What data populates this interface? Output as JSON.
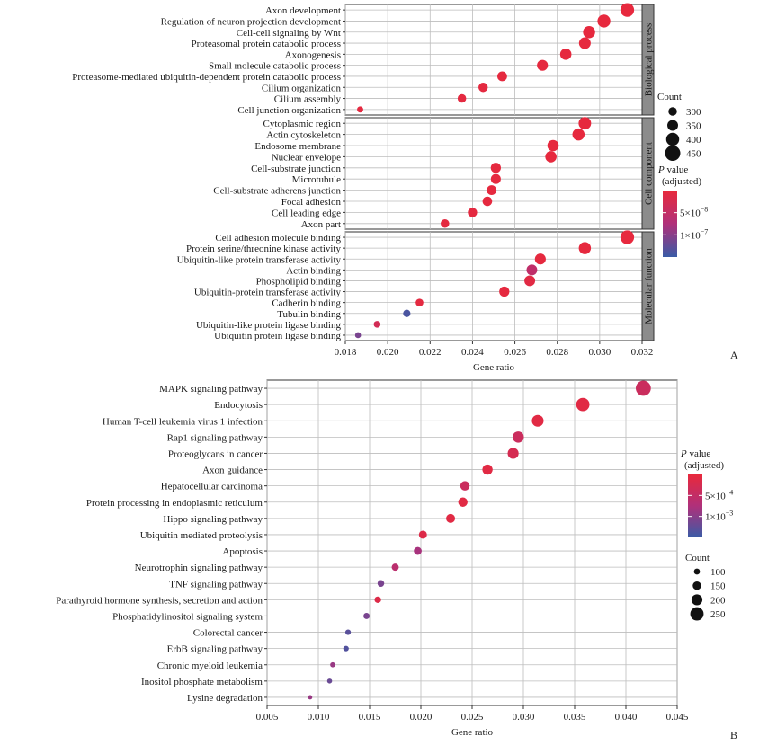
{
  "chart_data": [
    {
      "type": "scatter",
      "subtype": "dot-plot",
      "panel_label": "A",
      "xlabel": "Gene ratio",
      "xlim": [
        0.018,
        0.032
      ],
      "xticks": [
        0.018,
        0.02,
        0.022,
        0.024,
        0.026,
        0.028,
        0.03,
        0.032
      ],
      "xtick_labels": [
        "0.018",
        "0.020",
        "0.022",
        "0.024",
        "0.026",
        "0.028",
        "0.030",
        "0.032"
      ],
      "facets": [
        {
          "name": "Biological process",
          "terms": [
            {
              "label": "Axon development",
              "ratio": 0.0313,
              "count": 460,
              "p": 2e-09
            },
            {
              "label": "Regulation of neuron projection development",
              "ratio": 0.0302,
              "count": 440,
              "p": 2e-09
            },
            {
              "label": "Cell-cell signaling by Wnt",
              "ratio": 0.0295,
              "count": 420,
              "p": 3e-09
            },
            {
              "label": "Proteasomal protein catabolic process",
              "ratio": 0.0293,
              "count": 410,
              "p": 3e-09
            },
            {
              "label": "Axonogenesis",
              "ratio": 0.0284,
              "count": 400,
              "p": 3e-09
            },
            {
              "label": "Small molecule catabolic process",
              "ratio": 0.0273,
              "count": 390,
              "p": 4e-09
            },
            {
              "label": "Proteasome-mediated ubiquitin-dependent protein catabolic process",
              "ratio": 0.0254,
              "count": 360,
              "p": 4e-09
            },
            {
              "label": "Cilium organization",
              "ratio": 0.0245,
              "count": 350,
              "p": 5e-09
            },
            {
              "label": "Cilium assembly",
              "ratio": 0.0235,
              "count": 330,
              "p": 5e-09
            },
            {
              "label": "Cell junction organization",
              "ratio": 0.0187,
              "count": 270,
              "p": 6e-09
            }
          ]
        },
        {
          "name": "Cell component",
          "terms": [
            {
              "label": "Cytoplasmic region",
              "ratio": 0.0293,
              "count": 430,
              "p": 3e-09
            },
            {
              "label": "Actin cytoskeleton",
              "ratio": 0.029,
              "count": 420,
              "p": 3e-09
            },
            {
              "label": "Endosome membrane",
              "ratio": 0.0278,
              "count": 400,
              "p": 3e-09
            },
            {
              "label": "Nuclear envelope",
              "ratio": 0.0277,
              "count": 400,
              "p": 3e-09
            },
            {
              "label": "Cell-substrate junction",
              "ratio": 0.0251,
              "count": 370,
              "p": 4e-09
            },
            {
              "label": "Microtubule",
              "ratio": 0.0251,
              "count": 365,
              "p": 4e-09
            },
            {
              "label": "Cell-substrate adherens junction",
              "ratio": 0.0249,
              "count": 360,
              "p": 4e-09
            },
            {
              "label": "Focal adhesion",
              "ratio": 0.0247,
              "count": 355,
              "p": 4e-09
            },
            {
              "label": "Cell leading edge",
              "ratio": 0.024,
              "count": 350,
              "p": 5e-09
            },
            {
              "label": "Axon part",
              "ratio": 0.0227,
              "count": 330,
              "p": 5e-09
            }
          ]
        },
        {
          "name": "Molecular function",
          "terms": [
            {
              "label": "Cell adhesion molecule binding",
              "ratio": 0.0313,
              "count": 460,
              "p": 2e-09
            },
            {
              "label": "Protein serine/threonine kinase activity",
              "ratio": 0.0293,
              "count": 420,
              "p": 3e-09
            },
            {
              "label": "Ubiquitin-like protein transferase activity",
              "ratio": 0.0272,
              "count": 390,
              "p": 4e-09
            },
            {
              "label": "Actin binding",
              "ratio": 0.0268,
              "count": 385,
              "p": 5.5e-08
            },
            {
              "label": "Phospholipid binding",
              "ratio": 0.0267,
              "count": 385,
              "p": 1e-08
            },
            {
              "label": "Ubiquitin-protein transferase activity",
              "ratio": 0.0255,
              "count": 370,
              "p": 4e-09
            },
            {
              "label": "Cadherin binding",
              "ratio": 0.0215,
              "count": 310,
              "p": 6e-09
            },
            {
              "label": "Tubulin binding",
              "ratio": 0.0209,
              "count": 300,
              "p": 1.4e-07
            },
            {
              "label": "Ubiquitin-like protein ligase binding",
              "ratio": 0.0195,
              "count": 285,
              "p": 3e-08
            },
            {
              "label": "Ubiquitin protein ligase binding",
              "ratio": 0.0186,
              "count": 265,
              "p": 1.1e-07
            }
          ]
        }
      ],
      "legend_count": {
        "title": "Count",
        "values": [
          300,
          350,
          400,
          450
        ],
        "labels": [
          "300",
          "350",
          "400",
          "450"
        ]
      },
      "legend_color": {
        "title_p": "P",
        "title_rest": " value",
        "title_line2": "(adjusted)",
        "ticks": [
          {
            "mantissa": "5",
            "exponent": "−8",
            "value": 5e-08
          },
          {
            "mantissa": "1",
            "exponent": "−7",
            "value": 1e-07
          }
        ],
        "p_range": [
          0,
          1.5e-07
        ],
        "colors": {
          "low": "#e8293c",
          "mid": "#b0307a",
          "high": "#3a5ba6"
        }
      }
    },
    {
      "type": "scatter",
      "subtype": "dot-plot",
      "panel_label": "B",
      "xlabel": "Gene ratio",
      "xlim": [
        0.005,
        0.045
      ],
      "xticks": [
        0.005,
        0.01,
        0.015,
        0.02,
        0.025,
        0.03,
        0.035,
        0.04,
        0.045
      ],
      "xtick_labels": [
        "0.005",
        "0.010",
        "0.015",
        "0.020",
        "0.025",
        "0.030",
        "0.035",
        "0.040",
        "0.045"
      ],
      "terms": [
        {
          "label": "MAPK signaling pathway",
          "ratio": 0.0417,
          "count": 270,
          "p": 0.0004
        },
        {
          "label": "Endocytosis",
          "ratio": 0.0358,
          "count": 235,
          "p": 0.0001
        },
        {
          "label": "Human T-cell leukemia virus 1 infection",
          "ratio": 0.0314,
          "count": 205,
          "p": 0.0001
        },
        {
          "label": "Rap1 signaling pathway",
          "ratio": 0.0295,
          "count": 195,
          "p": 0.0004
        },
        {
          "label": "Proteoglycans in cancer",
          "ratio": 0.029,
          "count": 190,
          "p": 0.00025
        },
        {
          "label": "Axon guidance",
          "ratio": 0.0265,
          "count": 175,
          "p": 0.0001
        },
        {
          "label": "Hepatocellular carcinoma",
          "ratio": 0.0243,
          "count": 160,
          "p": 0.0004
        },
        {
          "label": "Protein processing in endoplasmic reticulum",
          "ratio": 0.0241,
          "count": 158,
          "p": 0.0001
        },
        {
          "label": "Hippo signaling pathway",
          "ratio": 0.0229,
          "count": 150,
          "p": 0.0001
        },
        {
          "label": "Ubiquitin mediated proteolysis",
          "ratio": 0.0202,
          "count": 133,
          "p": 0.00015
        },
        {
          "label": "Apoptosis",
          "ratio": 0.0197,
          "count": 130,
          "p": 0.0008
        },
        {
          "label": "Neurotrophin signaling pathway",
          "ratio": 0.0175,
          "count": 115,
          "p": 0.0006
        },
        {
          "label": "TNF signaling pathway",
          "ratio": 0.0161,
          "count": 106,
          "p": 0.0011
        },
        {
          "label": "Parathyroid hormone synthesis, secretion and action",
          "ratio": 0.0158,
          "count": 104,
          "p": 0.00015
        },
        {
          "label": "Phosphatidylinositol signaling system",
          "ratio": 0.0147,
          "count": 97,
          "p": 0.0011
        },
        {
          "label": "Colorectal cancer",
          "ratio": 0.0129,
          "count": 85,
          "p": 0.0013
        },
        {
          "label": "ErbB signaling pathway",
          "ratio": 0.0127,
          "count": 84,
          "p": 0.00135
        },
        {
          "label": "Chronic myeloid leukemia",
          "ratio": 0.0114,
          "count": 75,
          "p": 0.0009
        },
        {
          "label": "Inositol phosphate metabolism",
          "ratio": 0.0111,
          "count": 73,
          "p": 0.0012
        },
        {
          "label": "Lysine degradation",
          "ratio": 0.0092,
          "count": 60,
          "p": 0.0009
        }
      ],
      "legend_count": {
        "title": "Count",
        "values": [
          100,
          150,
          200,
          250
        ],
        "labels": [
          "100",
          "150",
          "200",
          "250"
        ]
      },
      "legend_color": {
        "title_p": "P",
        "title_rest": " value",
        "title_line2": "(adjusted)",
        "ticks": [
          {
            "mantissa": "5",
            "exponent": "−4",
            "value": 0.0005
          },
          {
            "mantissa": "1",
            "exponent": "−3",
            "value": 0.001
          }
        ],
        "p_range": [
          0,
          0.0015
        ],
        "colors": {
          "low": "#e8293c",
          "mid": "#b0307a",
          "high": "#3a5ba6"
        }
      }
    }
  ]
}
